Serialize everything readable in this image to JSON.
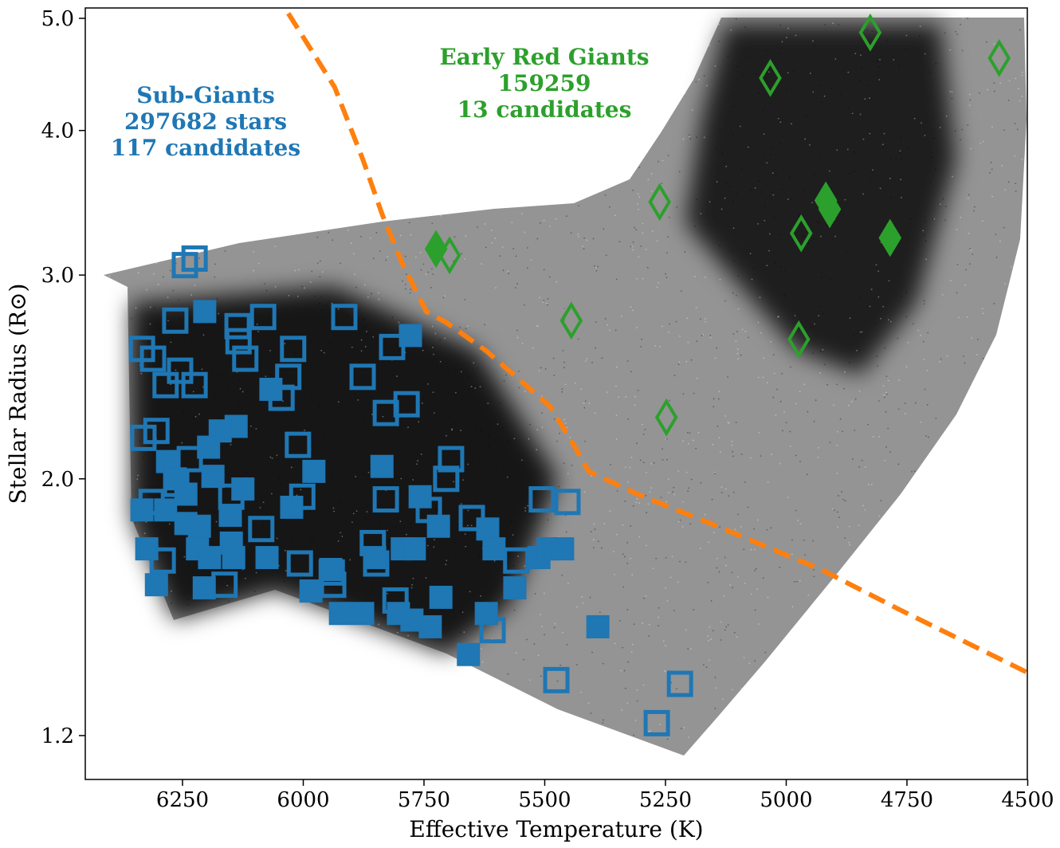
{
  "chart_data": {
    "type": "scatter",
    "xlabel": "Effective Temperature (K)",
    "ylabel": "Stellar Radius (R⊙)",
    "xlim": [
      6450,
      4500
    ],
    "x_reversed": true,
    "ylim": [
      1.1,
      5.1
    ],
    "y_scale": "log",
    "x_ticks": [
      "6250",
      "6000",
      "5750",
      "5500",
      "5250",
      "5000",
      "4750",
      "4500"
    ],
    "y_ticks": [
      "1.2",
      "2.0",
      "3.0",
      "4.0",
      "5.0"
    ],
    "grid": false,
    "colors": {
      "sub_giants": "#1f77b4",
      "red_giants": "#2ca02c",
      "boundary": "#ff7f0e",
      "background_stars": "#000000"
    },
    "annotations": {
      "sub_giants": [
        "Sub-Giants",
        "297682 stars",
        "117 candidates"
      ],
      "red_giants": [
        "Early Red Giants",
        "159259",
        "13 candidates"
      ]
    },
    "boundary_line": {
      "style": "dashed",
      "points": [
        [
          6031,
          5.05
        ],
        [
          5935,
          4.36
        ],
        [
          5877,
          3.78
        ],
        [
          5836,
          3.38
        ],
        [
          5795,
          3.07
        ],
        [
          5745,
          2.79
        ],
        [
          5704,
          2.73
        ],
        [
          5621,
          2.58
        ],
        [
          5489,
          2.31
        ],
        [
          5443,
          2.15
        ],
        [
          5409,
          2.03
        ],
        [
          5308,
          1.94
        ],
        [
          5143,
          1.82
        ],
        [
          4928,
          1.67
        ],
        [
          4763,
          1.54
        ],
        [
          4500,
          1.36
        ]
      ]
    },
    "series": [
      {
        "marker": "square-open",
        "color": "#1f77b4",
        "points": [
          [
            6245,
            3.06
          ],
          [
            6225,
            3.1
          ],
          [
            6265,
            2.74
          ],
          [
            6136,
            2.71
          ],
          [
            6083,
            2.76
          ],
          [
            5915,
            2.76
          ],
          [
            6334,
            2.59
          ],
          [
            6311,
            2.54
          ],
          [
            6134,
            2.63
          ],
          [
            6120,
            2.54
          ],
          [
            6021,
            2.59
          ],
          [
            6255,
            2.48
          ],
          [
            6285,
            2.41
          ],
          [
            6225,
            2.41
          ],
          [
            6031,
            2.45
          ],
          [
            6045,
            2.35
          ],
          [
            5877,
            2.45
          ],
          [
            5816,
            2.6
          ],
          [
            5829,
            2.28
          ],
          [
            5786,
            2.32
          ],
          [
            6331,
            2.17
          ],
          [
            6304,
            2.2
          ],
          [
            6011,
            2.14
          ],
          [
            5694,
            2.08
          ],
          [
            6263,
            1.98
          ],
          [
            6235,
            2.08
          ],
          [
            6002,
            1.93
          ],
          [
            5829,
            1.92
          ],
          [
            5704,
            2.0
          ],
          [
            5651,
            1.85
          ],
          [
            5506,
            1.92
          ],
          [
            5453,
            1.91
          ],
          [
            6087,
            1.81
          ],
          [
            5856,
            1.76
          ],
          [
            5849,
            1.69
          ],
          [
            6007,
            1.69
          ],
          [
            5941,
            1.66
          ],
          [
            5938,
            1.62
          ],
          [
            6291,
            1.7
          ],
          [
            6163,
            1.62
          ],
          [
            5809,
            1.57
          ],
          [
            5608,
            1.48
          ],
          [
            5476,
            1.34
          ],
          [
            5220,
            1.33
          ],
          [
            5268,
            1.23
          ],
          [
            6314,
            1.91
          ],
          [
            6149,
            1.93
          ],
          [
            5740,
            1.88
          ],
          [
            5559,
            1.7
          ]
        ]
      },
      {
        "marker": "square-filled",
        "color": "#1f77b4",
        "points": [
          [
            6204,
            2.79
          ],
          [
            5778,
            2.66
          ],
          [
            6067,
            2.39
          ],
          [
            6139,
            2.22
          ],
          [
            6172,
            2.2
          ],
          [
            6196,
            2.13
          ],
          [
            6281,
            2.07
          ],
          [
            6265,
            2.0
          ],
          [
            6187,
            2.01
          ],
          [
            6125,
            1.96
          ],
          [
            5978,
            2.03
          ],
          [
            6334,
            1.88
          ],
          [
            6151,
            1.86
          ],
          [
            6024,
            1.89
          ],
          [
            5837,
            2.05
          ],
          [
            5758,
            1.93
          ],
          [
            6285,
            1.88
          ],
          [
            6243,
            1.83
          ],
          [
            6215,
            1.82
          ],
          [
            5720,
            1.82
          ],
          [
            5618,
            1.81
          ],
          [
            5605,
            1.74
          ],
          [
            6324,
            1.74
          ],
          [
            6149,
            1.76
          ],
          [
            6075,
            1.71
          ],
          [
            6219,
            1.74
          ],
          [
            6304,
            1.62
          ],
          [
            6205,
            1.61
          ],
          [
            5984,
            1.6
          ],
          [
            5877,
            1.53
          ],
          [
            5923,
            1.53
          ],
          [
            5775,
            1.51
          ],
          [
            5737,
            1.49
          ],
          [
            5715,
            1.58
          ],
          [
            5621,
            1.53
          ],
          [
            5658,
            1.41
          ],
          [
            5562,
            1.61
          ],
          [
            5512,
            1.71
          ],
          [
            5493,
            1.74
          ],
          [
            5463,
            1.74
          ],
          [
            5390,
            1.49
          ],
          [
            5803,
            1.53
          ],
          [
            5795,
            1.74
          ],
          [
            5770,
            1.74
          ],
          [
            5852,
            1.71
          ],
          [
            6243,
            1.94
          ],
          [
            6194,
            1.71
          ],
          [
            6144,
            1.71
          ],
          [
            5943,
            1.67
          ]
        ]
      },
      {
        "marker": "diamond-open",
        "color": "#2ca02c",
        "points": [
          [
            4826,
            4.86
          ],
          [
            4559,
            4.62
          ],
          [
            5033,
            4.44
          ],
          [
            5262,
            3.47
          ],
          [
            5697,
            3.12
          ],
          [
            4969,
            3.26
          ],
          [
            5445,
            2.74
          ],
          [
            4974,
            2.64
          ],
          [
            5248,
            2.26
          ]
        ]
      },
      {
        "marker": "diamond-filled",
        "color": "#2ca02c",
        "points": [
          [
            5725,
            3.16
          ],
          [
            4918,
            3.48
          ],
          [
            4910,
            3.42
          ],
          [
            4785,
            3.23
          ]
        ]
      }
    ]
  }
}
